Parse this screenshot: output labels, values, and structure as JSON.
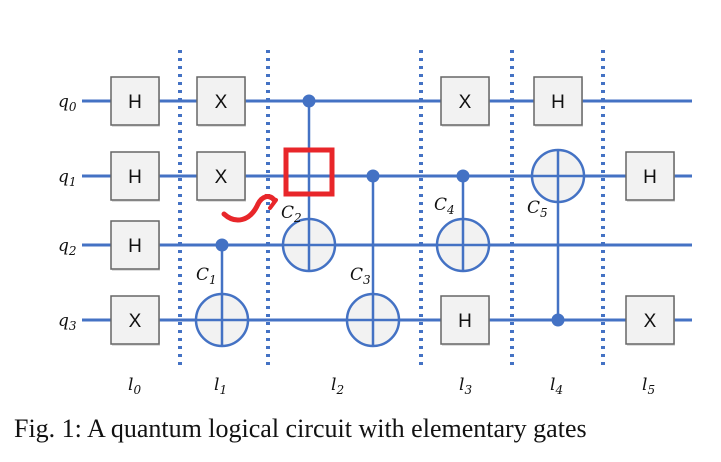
{
  "colors": {
    "wire": "#4472c4",
    "gate_fill": "#f2f2f2",
    "gate_stroke": "#666666",
    "highlight": "#e8262a"
  },
  "qubits": [
    {
      "base": "q",
      "sub": "0"
    },
    {
      "base": "q",
      "sub": "1"
    },
    {
      "base": "q",
      "sub": "2"
    },
    {
      "base": "q",
      "sub": "3"
    }
  ],
  "layers": [
    {
      "base": "l",
      "sub": "0"
    },
    {
      "base": "l",
      "sub": "1"
    },
    {
      "base": "l",
      "sub": "2"
    },
    {
      "base": "l",
      "sub": "3"
    },
    {
      "base": "l",
      "sub": "4"
    },
    {
      "base": "l",
      "sub": "5"
    }
  ],
  "gates": [
    {
      "label": "H",
      "qubit": 0,
      "layer": 0
    },
    {
      "label": "H",
      "qubit": 1,
      "layer": 0
    },
    {
      "label": "H",
      "qubit": 2,
      "layer": 0
    },
    {
      "label": "X",
      "qubit": 3,
      "layer": 0
    },
    {
      "label": "X",
      "qubit": 0,
      "layer": 1
    },
    {
      "label": "X",
      "qubit": 1,
      "layer": 1
    },
    {
      "label": "X",
      "qubit": 0,
      "layer": 3
    },
    {
      "label": "H",
      "qubit": 3,
      "layer": 3
    },
    {
      "label": "H",
      "qubit": 0,
      "layer": 4
    },
    {
      "label": "H",
      "qubit": 1,
      "layer": 5
    },
    {
      "label": "X",
      "qubit": 3,
      "layer": 5
    }
  ],
  "cnots": [
    {
      "name": "C1",
      "base": "C",
      "sub": "1",
      "control": 2,
      "target": 3
    },
    {
      "name": "C2",
      "base": "C",
      "sub": "2",
      "control": 0,
      "target": 2
    },
    {
      "name": "C3",
      "base": "C",
      "sub": "3",
      "control": 1,
      "target": 3
    },
    {
      "name": "C4",
      "base": "C",
      "sub": "4",
      "control": 1,
      "target": 2
    },
    {
      "name": "C5",
      "base": "C",
      "sub": "5",
      "control": 3,
      "target": 1
    }
  ],
  "caption": "Fig. 1: A quantum logical circuit with elementary gates"
}
